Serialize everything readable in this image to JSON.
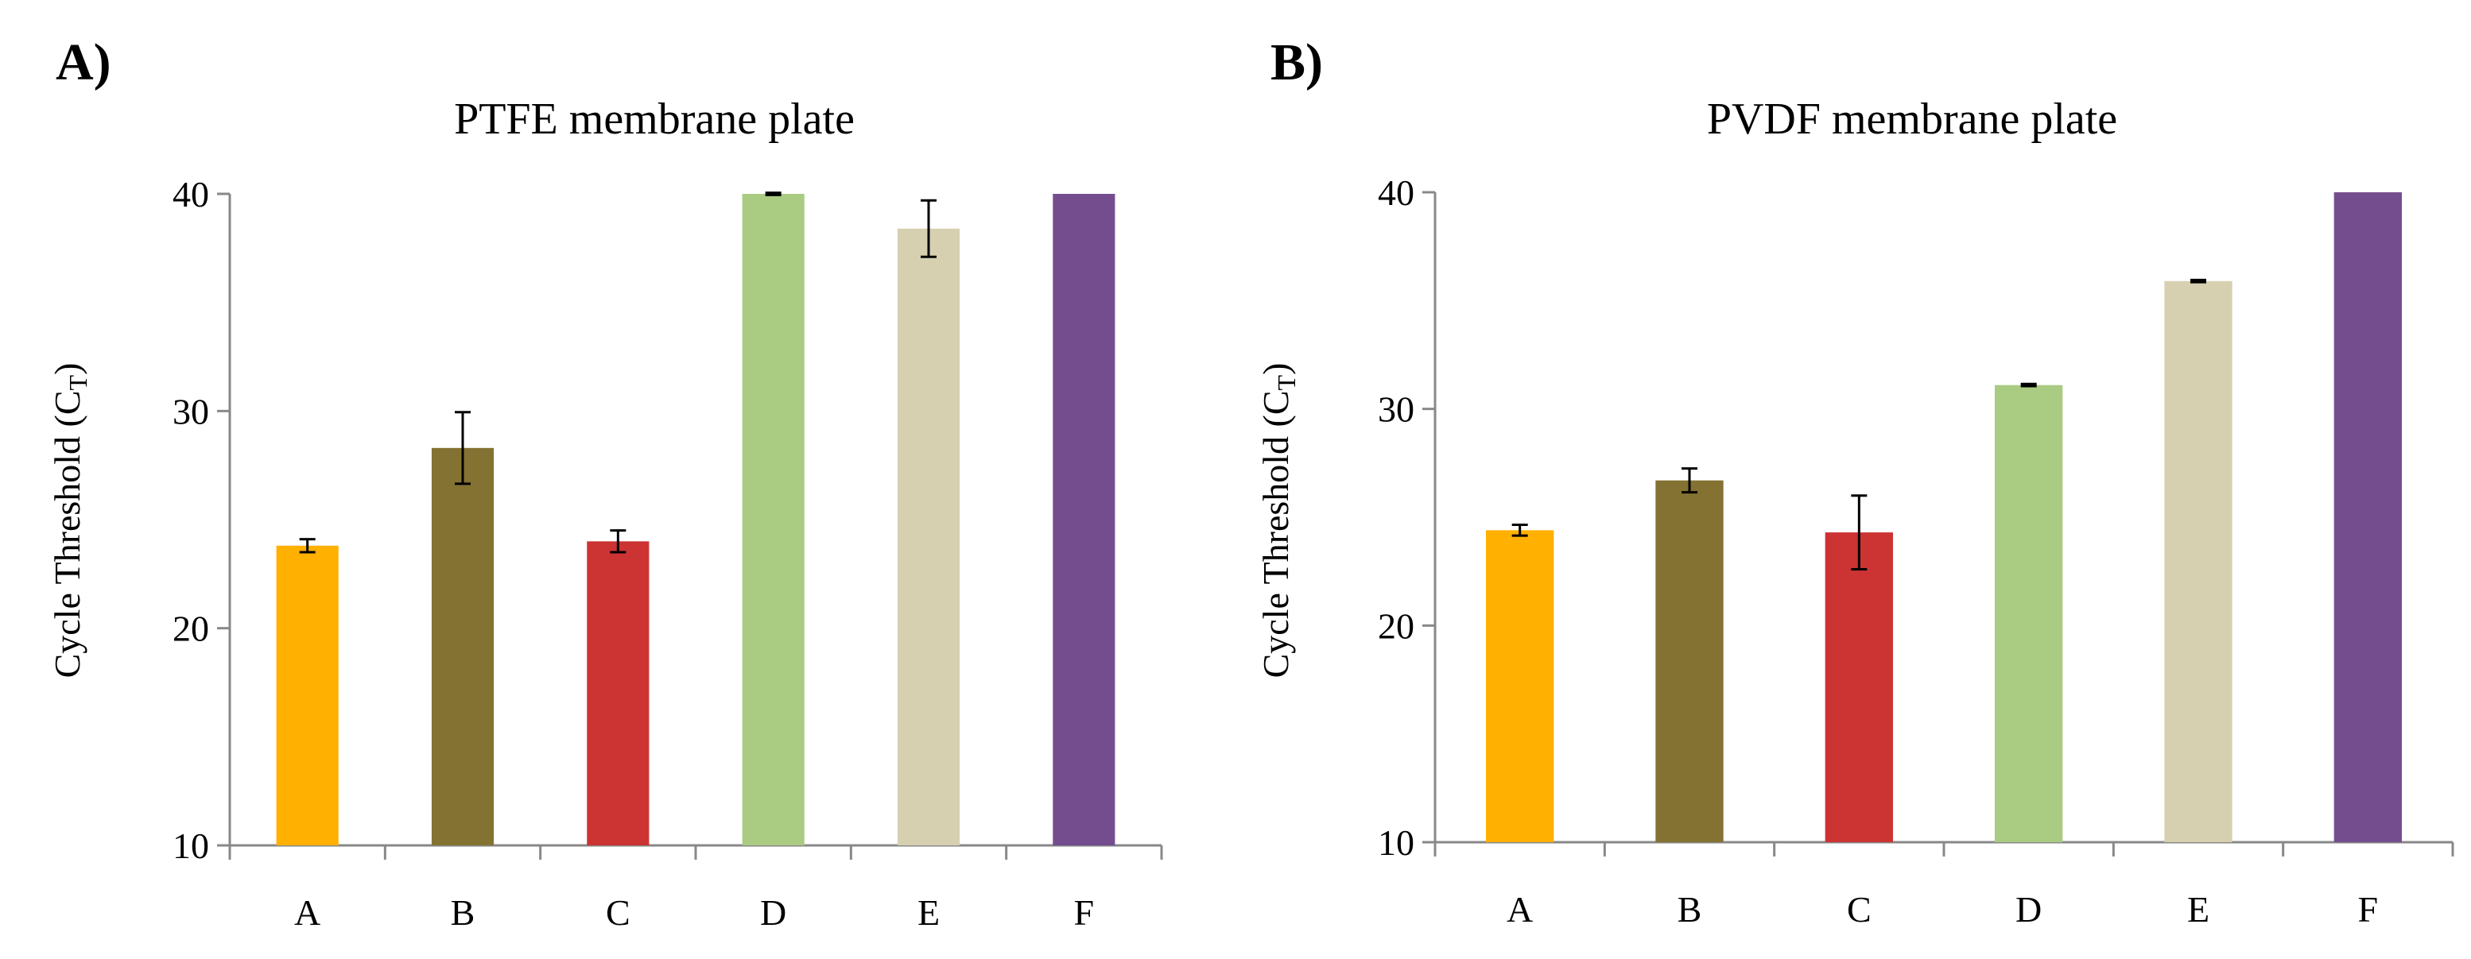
{
  "chart_data": [
    {
      "type": "bar",
      "panel_label": "A)",
      "title": "PTFE membrane plate",
      "xlabel": "",
      "ylabel": "Cycle Threshold (C",
      "ylabel_subscript": "T",
      "ylabel_close": ")",
      "ylim": [
        10,
        40
      ],
      "yticks": [
        10,
        20,
        30,
        40
      ],
      "grid": false,
      "categories": [
        "A",
        "B",
        "C",
        "D",
        "E",
        "F"
      ],
      "values": [
        23.8,
        28.3,
        24.0,
        40.0,
        38.4,
        40.0
      ],
      "errors": [
        0.3,
        1.65,
        0.5,
        0.05,
        1.3,
        0
      ],
      "colors": [
        "#FFB000",
        "#847233",
        "#CC3333",
        "#AACB82",
        "#D6D0B0",
        "#744D8F"
      ]
    },
    {
      "type": "bar",
      "panel_label": "B)",
      "title": "PVDF membrane plate",
      "xlabel": "",
      "ylabel": "Cycle Threshold (C",
      "ylabel_subscript": "T",
      "ylabel_close": ")",
      "ylim": [
        10,
        40
      ],
      "yticks": [
        10,
        20,
        30,
        40
      ],
      "grid": false,
      "categories": [
        "A",
        "B",
        "C",
        "D",
        "E",
        "F"
      ],
      "values": [
        24.4,
        26.7,
        24.3,
        31.1,
        35.9,
        40.0
      ],
      "errors": [
        0.25,
        0.55,
        1.7,
        0.05,
        0.05,
        0
      ],
      "colors": [
        "#FFB000",
        "#847233",
        "#CC3333",
        "#AACB82",
        "#D6D0B0",
        "#744D8F"
      ]
    }
  ]
}
